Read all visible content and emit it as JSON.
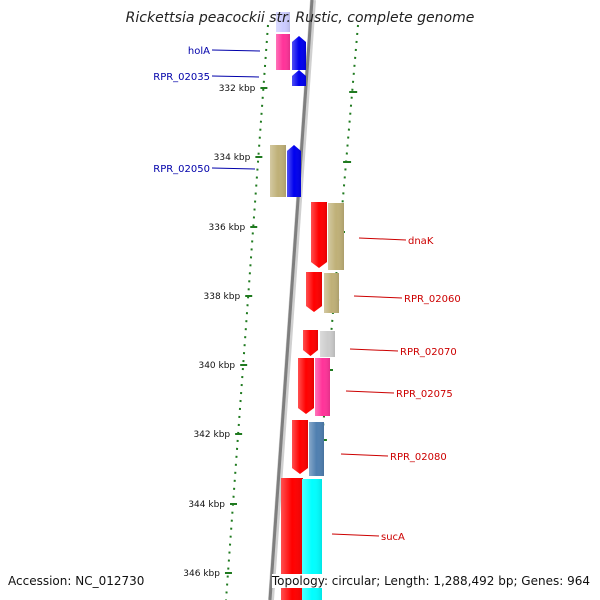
{
  "title": "Rickettsia peacockii str. Rustic, complete genome",
  "accession": "Accession: NC_012730",
  "topology": "Topology: circular; Length: 1,288,492 bp; Genes: 964",
  "colors": {
    "backbone": "#7f7f7f",
    "tick": "#1f7a1f",
    "label_left": "#0000aa",
    "label_right": "#cc0000",
    "gene_red": "#ff0000",
    "gene_blue": "#0000ee",
    "gene_magenta": "#ff3399",
    "gene_khaki": "#bfb077",
    "gene_gray": "#cccccc",
    "gene_steel": "#4f7fb0",
    "gene_cyan": "#00ffff",
    "gene_lavender": "#ccccff"
  },
  "tick_labels": [
    "332 kbp",
    "334 kbp",
    "336 kbp",
    "338 kbp",
    "340 kbp",
    "342 kbp",
    "344 kbp",
    "346 kbp"
  ],
  "left_gene_labels": [
    "holA",
    "RPR_02035",
    "RPR_02050"
  ],
  "right_gene_labels": [
    "dnaK",
    "RPR_02060",
    "RPR_02070",
    "RPR_02075",
    "RPR_02080",
    "sucA"
  ]
}
